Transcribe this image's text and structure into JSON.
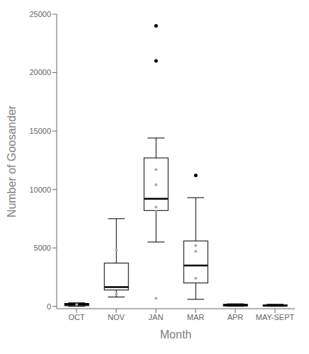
{
  "chart_data": {
    "type": "box",
    "xlabel": "Month",
    "ylabel": "Number of Goosander",
    "categories": [
      "OCT",
      "NOV",
      "JAN",
      "MAR",
      "APR",
      "MAY-SEPT"
    ],
    "ylim": [
      -200,
      25000
    ],
    "yticks": [
      0,
      5000,
      10000,
      15000,
      20000,
      25000
    ],
    "grid": false,
    "series": [
      {
        "type": "box",
        "color": "#000000",
        "q1": [
          50,
          1400,
          8200,
          2000,
          30,
          20
        ],
        "median": [
          150,
          1650,
          9200,
          3500,
          100,
          60
        ],
        "q3": [
          250,
          3700,
          12700,
          5600,
          180,
          130
        ],
        "whislo": [
          0,
          800,
          5500,
          600,
          0,
          0
        ],
        "whishi": [
          300,
          7500,
          14400,
          9300,
          220,
          180
        ]
      },
      {
        "type": "scatter",
        "color": "#000000",
        "values": [
          [],
          [],
          [
            21000,
            24000
          ],
          [
            11200
          ],
          [],
          []
        ]
      },
      {
        "type": "scatter",
        "color": "#aaaaaa",
        "values": [
          [
            150
          ],
          [
            4800,
            1050
          ],
          [
            11700,
            10400,
            8500,
            8100,
            700
          ],
          [
            5200,
            4700,
            2400
          ],
          [],
          []
        ]
      }
    ]
  }
}
